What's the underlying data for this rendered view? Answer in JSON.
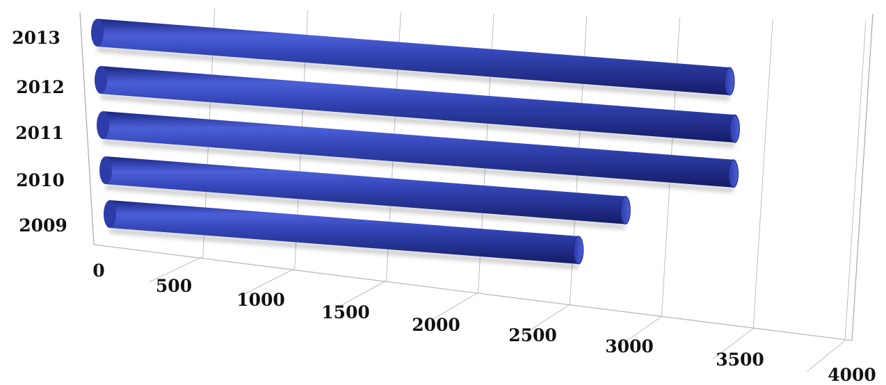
{
  "chart_data": {
    "type": "bar",
    "orientation": "horizontal",
    "style": "3d-cylinder",
    "categories": [
      "2009",
      "2010",
      "2011",
      "2012",
      "2013"
    ],
    "values": [
      2750,
      3050,
      3700,
      3720,
      3710
    ],
    "x_ticks": [
      "0",
      "500",
      "1000",
      "1500",
      "2000",
      "2500",
      "3000",
      "3500",
      "4000"
    ],
    "xlim": [
      0,
      4000
    ],
    "grid": true,
    "legend": "none",
    "title": "",
    "xlabel": "",
    "ylabel": "",
    "colors": {
      "bar": "#2b3ba3",
      "bar_light": "#5b6de0",
      "bar_dark": "#141f6b"
    }
  }
}
